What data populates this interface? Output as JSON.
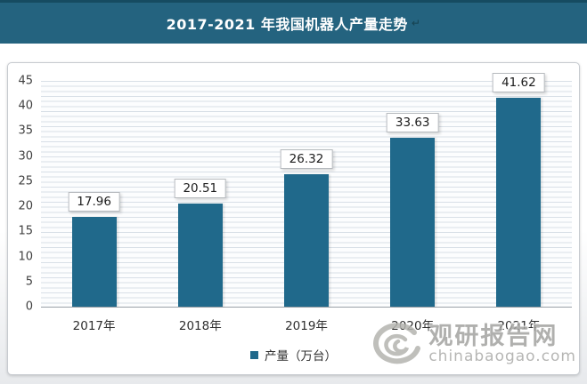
{
  "banner": {
    "title": "2017-2021 年我国机器人产量走势",
    "anchor_glyph": "↵"
  },
  "chart_data": {
    "type": "bar",
    "title": "2017-2021 年我国机器人产量走势",
    "categories": [
      "2017年",
      "2018年",
      "2019年",
      "2020年",
      "2021年"
    ],
    "values": [
      17.96,
      20.51,
      26.32,
      33.63,
      41.62
    ],
    "value_labels": [
      "17.96",
      "20.51",
      "26.32",
      "33.63",
      "41.62"
    ],
    "series_name": "产量（万台）",
    "xlabel": "",
    "ylabel": "",
    "ylim": [
      0,
      45
    ],
    "ytick_step": 5,
    "grid": "horizontal minor gridlines on",
    "legend_position": "bottom-center",
    "bar_color": "#20698b"
  },
  "legend": {
    "label": "产量（万台）",
    "marker_color": "#20698b"
  },
  "watermark": {
    "name": "观研报告网",
    "url": "chinabaogao.com"
  },
  "colors": {
    "banner_bg": "#24637f",
    "banner_top_strip": "#164b61",
    "bar": "#20698b",
    "gridline": "#d8dfe6",
    "axis_line": "#9aa1a7",
    "frame_border": "#c7cbd0",
    "watermark_gray": "#a3a3a0"
  }
}
